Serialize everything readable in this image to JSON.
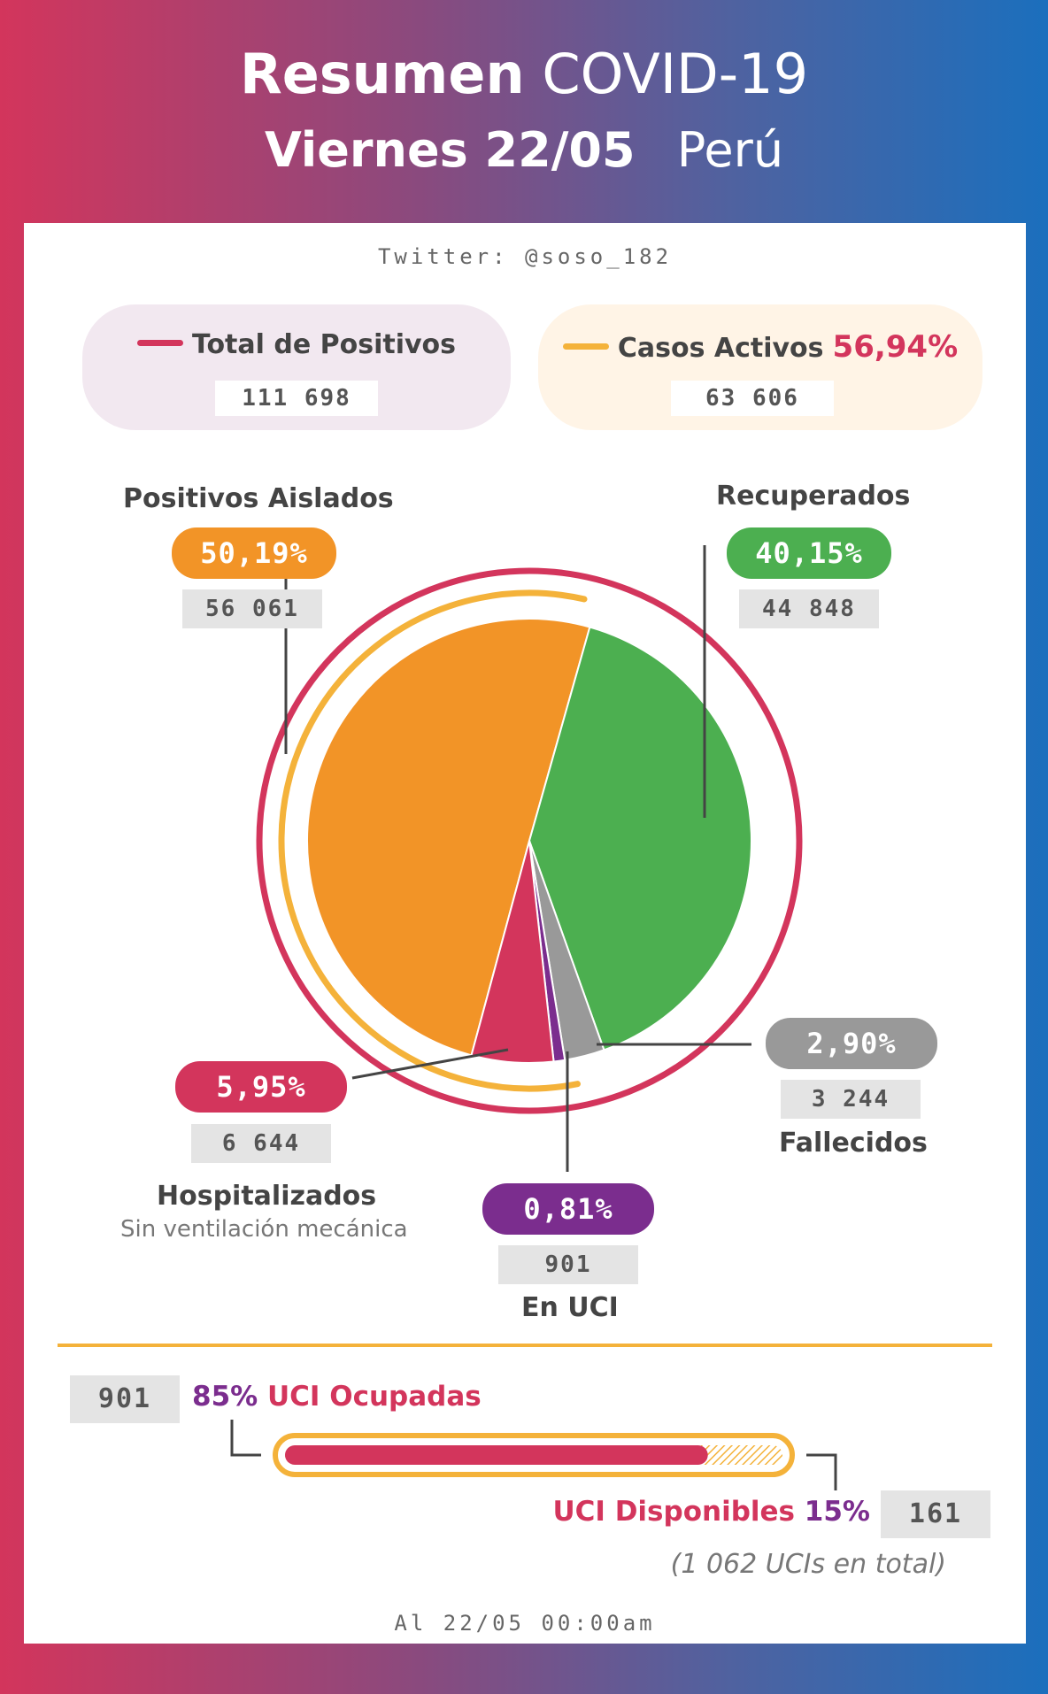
{
  "header": {
    "title_bold": "Resumen",
    "title_light": "COVID-19",
    "day_bold": "Viernes 22/05",
    "country": "Perú"
  },
  "twitter": "Twitter: @soso_182",
  "total_positivos": {
    "label": "Total de Positivos",
    "value": "111 698",
    "color": "#d3355c"
  },
  "casos_activos": {
    "label": "Casos Activos",
    "percent": "56,94%",
    "value": "63 606",
    "color": "#f4b23a"
  },
  "chart_data": {
    "type": "pie",
    "title": "Resumen COVID-19 Viernes 22/05 Perú",
    "total": 111698,
    "active_percent": 56.94,
    "slices": [
      {
        "label": "Positivos Aislados",
        "percent": 50.19,
        "percent_label": "50,19%",
        "value": 56061,
        "value_label": "56 061",
        "color": "#f29427"
      },
      {
        "label": "Recuperados",
        "percent": 40.15,
        "percent_label": "40,15%",
        "value": 44848,
        "value_label": "44 848",
        "color": "#4caf50"
      },
      {
        "label": "Fallecidos",
        "percent": 2.9,
        "percent_label": "2,90%",
        "value": 3244,
        "value_label": "3 244",
        "color": "#999999"
      },
      {
        "label": "En UCI",
        "percent": 0.81,
        "percent_label": "0,81%",
        "value": 901,
        "value_label": "901",
        "color": "#7b2d8e"
      },
      {
        "label": "Hospitalizados",
        "sublabel": "Sin ventilación mecánica",
        "percent": 5.95,
        "percent_label": "5,95%",
        "value": 6644,
        "value_label": "6 644",
        "color": "#d3355c"
      }
    ]
  },
  "uci": {
    "occupied_value": "901",
    "occupied_percent": "85%",
    "occupied_label": "UCI Ocupadas",
    "occupied_fraction": 0.85,
    "available_label": "UCI Disponibles",
    "available_percent": "15%",
    "available_value": "161",
    "total_note": "(1 062 UCIs en total)"
  },
  "footer": "Al 22/05 00:00am"
}
